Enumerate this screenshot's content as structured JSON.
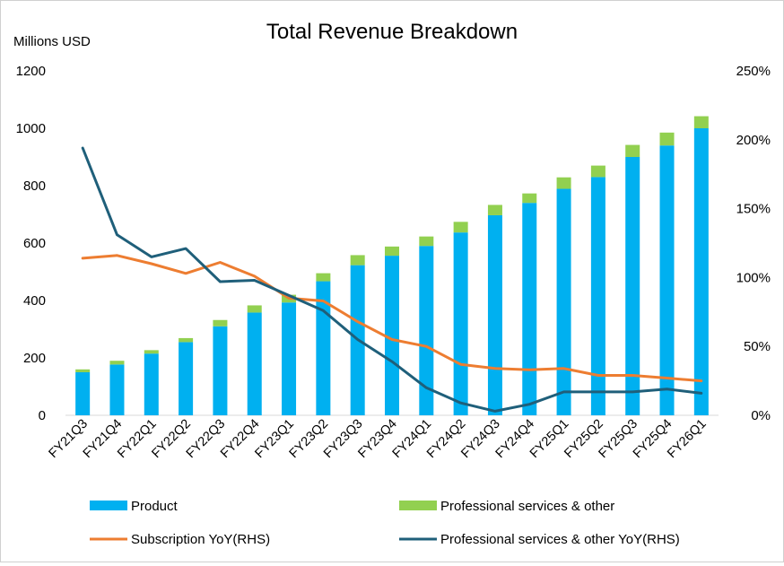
{
  "chart_data": {
    "type": "bar+line",
    "title": "Total Revenue Breakdown",
    "y_left_label": "Millions USD",
    "y_left_range": [
      0,
      1200
    ],
    "y_left_ticks": [
      "0",
      "200",
      "400",
      "600",
      "800",
      "1000",
      "1200"
    ],
    "y_right_range": [
      0,
      250
    ],
    "y_right_ticks": [
      "0%",
      "50%",
      "100%",
      "150%",
      "200%",
      "250%"
    ],
    "categories": [
      "FY21Q3",
      "FY21Q4",
      "FY22Q1",
      "FY22Q2",
      "FY22Q3",
      "FY22Q4",
      "FY23Q1",
      "FY23Q2",
      "FY23Q3",
      "FY23Q4",
      "FY24Q1",
      "FY24Q2",
      "FY24Q3",
      "FY24Q4",
      "FY25Q1",
      "FY25Q2",
      "FY25Q3",
      "FY25Q4",
      "FY26Q1"
    ],
    "stacked_series": [
      {
        "name": "Product",
        "color": "#00b0f0",
        "values": [
          150,
          177,
          215,
          255,
          310,
          358,
          393,
          467,
          523,
          556,
          590,
          637,
          697,
          740,
          789,
          830,
          900,
          940,
          1000
        ]
      },
      {
        "name": "Professional services & other",
        "color": "#92d050",
        "values": [
          10,
          13,
          12,
          14,
          22,
          25,
          27,
          28,
          35,
          32,
          33,
          37,
          36,
          33,
          40,
          40,
          42,
          45,
          42
        ]
      }
    ],
    "line_series": [
      {
        "name": "Subscription YoY(RHS)",
        "color": "#ed7d31",
        "axis": "right",
        "values": [
          114,
          116,
          110,
          103,
          111,
          101,
          85,
          83,
          68,
          55,
          50,
          37,
          34,
          33,
          34,
          29,
          29,
          27,
          25
        ]
      },
      {
        "name": "Professional services & other YoY(RHS)",
        "color": "#1f5f7a",
        "axis": "right",
        "values": [
          194,
          131,
          115,
          121,
          97,
          98,
          87,
          76,
          55,
          39,
          20,
          9,
          3,
          8,
          17,
          17,
          17,
          19,
          16
        ]
      }
    ],
    "legend_position": "bottom"
  }
}
